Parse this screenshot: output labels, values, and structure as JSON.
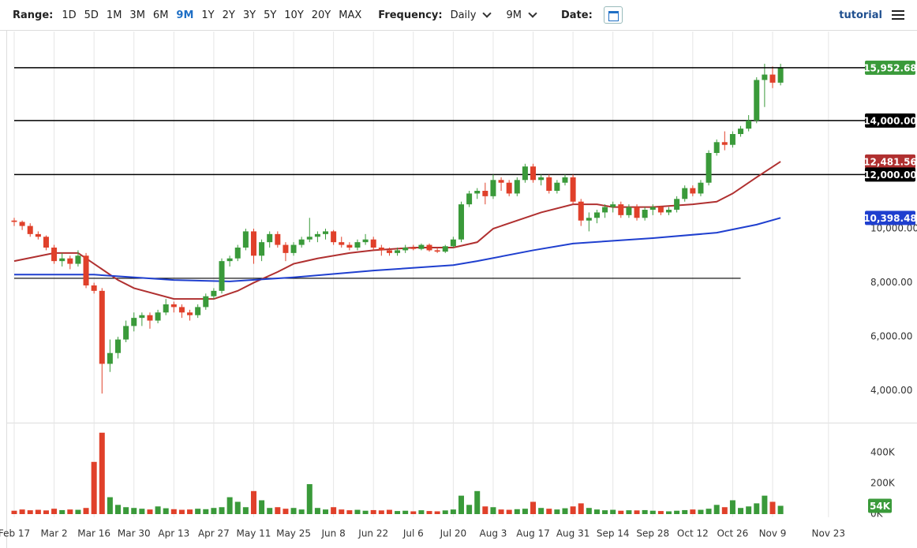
{
  "toolbar": {
    "range_label": "Range:",
    "ranges": [
      "1D",
      "5D",
      "1M",
      "3M",
      "6M",
      "9M",
      "1Y",
      "2Y",
      "3Y",
      "5Y",
      "10Y",
      "20Y",
      "MAX"
    ],
    "active_range": 5,
    "frequency_label": "Frequency:",
    "frequency": "Daily",
    "period": "9M",
    "date_label": "Date:",
    "tutorial": "tutorial"
  },
  "chart_data": {
    "type": "candlestick",
    "up_color": "#3a9a3a",
    "down_color": "#e0402a",
    "xlim": [
      -1,
      213
    ],
    "xticks": [
      {
        "value": 0,
        "label": "Feb 17"
      },
      {
        "value": 10,
        "label": "Mar 2"
      },
      {
        "value": 20,
        "label": "Mar 16"
      },
      {
        "value": 30,
        "label": "Mar 30"
      },
      {
        "value": 40,
        "label": "Apr 13"
      },
      {
        "value": 50,
        "label": "Apr 27"
      },
      {
        "value": 60,
        "label": "May 11"
      },
      {
        "value": 70,
        "label": "May 25"
      },
      {
        "value": 80,
        "label": "Jun 8"
      },
      {
        "value": 90,
        "label": "Jun 22"
      },
      {
        "value": 100,
        "label": "Jul 6"
      },
      {
        "value": 110,
        "label": "Jul 20"
      },
      {
        "value": 120,
        "label": "Aug 3"
      },
      {
        "value": 130,
        "label": "Aug 17"
      },
      {
        "value": 140,
        "label": "Aug 31"
      },
      {
        "value": 150,
        "label": "Sep 14"
      },
      {
        "value": 160,
        "label": "Sep 28"
      },
      {
        "value": 170,
        "label": "Oct 12"
      },
      {
        "value": 180,
        "label": "Oct 26"
      },
      {
        "value": 190,
        "label": "Nov 9"
      },
      {
        "value": 204,
        "label": "Nov 23"
      }
    ],
    "ylim": [
      3000,
      17000
    ],
    "yticks": [
      {
        "value": 4000,
        "label": "4,000.00"
      },
      {
        "value": 6000,
        "label": "6,000.00"
      },
      {
        "value": 8000,
        "label": "8,000.00"
      },
      {
        "value": 10000,
        "label": "10,000.00"
      }
    ],
    "x": [
      0,
      2,
      4,
      6,
      8,
      10,
      12,
      14,
      16,
      18,
      20,
      22,
      24,
      26,
      28,
      30,
      32,
      34,
      36,
      38,
      40,
      42,
      44,
      46,
      48,
      50,
      52,
      54,
      56,
      58,
      60,
      62,
      64,
      66,
      68,
      70,
      72,
      74,
      76,
      78,
      80,
      82,
      84,
      86,
      88,
      90,
      92,
      94,
      96,
      98,
      100,
      102,
      104,
      106,
      108,
      110,
      112,
      114,
      116,
      118,
      120,
      122,
      124,
      126,
      128,
      130,
      132,
      134,
      136,
      138,
      140,
      142,
      144,
      146,
      148,
      150,
      152,
      154,
      156,
      158,
      160,
      162,
      164,
      166,
      168,
      170,
      172,
      174,
      176,
      178,
      180,
      182,
      184,
      186,
      188,
      190,
      192
    ],
    "candles": [
      [
        10300,
        10400,
        10100,
        10250
      ],
      [
        10250,
        10300,
        9950,
        10100
      ],
      [
        10100,
        10200,
        9700,
        9800
      ],
      [
        9800,
        9900,
        9600,
        9700
      ],
      [
        9700,
        9750,
        9200,
        9300
      ],
      [
        9300,
        9400,
        8700,
        8800
      ],
      [
        8800,
        9100,
        8600,
        8900
      ],
      [
        8900,
        9000,
        8500,
        8700
      ],
      [
        8700,
        9200,
        8600,
        9000
      ],
      [
        9000,
        9100,
        7800,
        7900
      ],
      [
        7900,
        8000,
        7600,
        7700
      ],
      [
        7700,
        7800,
        3900,
        5000
      ],
      [
        5000,
        5900,
        4700,
        5400
      ],
      [
        5400,
        6000,
        5200,
        5900
      ],
      [
        5900,
        6600,
        5800,
        6400
      ],
      [
        6400,
        6900,
        6200,
        6700
      ],
      [
        6700,
        6900,
        6400,
        6800
      ],
      [
        6800,
        6900,
        6300,
        6600
      ],
      [
        6600,
        7000,
        6500,
        6900
      ],
      [
        6900,
        7400,
        6800,
        7200
      ],
      [
        7200,
        7300,
        6900,
        7100
      ],
      [
        7100,
        7200,
        6700,
        6900
      ],
      [
        6900,
        7000,
        6600,
        6800
      ],
      [
        6800,
        7200,
        6700,
        7100
      ],
      [
        7100,
        7600,
        7000,
        7500
      ],
      [
        7500,
        7800,
        7400,
        7700
      ],
      [
        7700,
        8900,
        7600,
        8800
      ],
      [
        8800,
        9000,
        8600,
        8900
      ],
      [
        8900,
        9400,
        8800,
        9300
      ],
      [
        9300,
        10000,
        9200,
        9900
      ],
      [
        9900,
        10000,
        8700,
        9000
      ],
      [
        9000,
        9600,
        8800,
        9500
      ],
      [
        9500,
        9900,
        9300,
        9800
      ],
      [
        9800,
        9900,
        9300,
        9400
      ],
      [
        9400,
        9500,
        8800,
        9100
      ],
      [
        9100,
        9500,
        9000,
        9400
      ],
      [
        9400,
        9700,
        9300,
        9600
      ],
      [
        9600,
        10400,
        9500,
        9700
      ],
      [
        9700,
        9900,
        9500,
        9800
      ],
      [
        9800,
        10000,
        9600,
        9900
      ],
      [
        9900,
        9950,
        9400,
        9500
      ],
      [
        9500,
        9700,
        9300,
        9400
      ],
      [
        9400,
        9500,
        9200,
        9300
      ],
      [
        9300,
        9600,
        9200,
        9500
      ],
      [
        9500,
        9800,
        9400,
        9600
      ],
      [
        9600,
        9700,
        9200,
        9300
      ],
      [
        9300,
        9400,
        9000,
        9200
      ],
      [
        9200,
        9300,
        9000,
        9100
      ],
      [
        9100,
        9300,
        9000,
        9200
      ],
      [
        9200,
        9400,
        9100,
        9300
      ],
      [
        9300,
        9400,
        9200,
        9250
      ],
      [
        9250,
        9450,
        9200,
        9400
      ],
      [
        9400,
        9450,
        9150,
        9200
      ],
      [
        9200,
        9300,
        9100,
        9150
      ],
      [
        9150,
        9400,
        9100,
        9350
      ],
      [
        9350,
        9700,
        9300,
        9600
      ],
      [
        9600,
        11000,
        9500,
        10900
      ],
      [
        10900,
        11400,
        10800,
        11300
      ],
      [
        11300,
        11500,
        11100,
        11400
      ],
      [
        11400,
        11700,
        10900,
        11200
      ],
      [
        11200,
        12000,
        11100,
        11800
      ],
      [
        11800,
        11900,
        11400,
        11700
      ],
      [
        11700,
        11800,
        11200,
        11300
      ],
      [
        11300,
        11900,
        11200,
        11800
      ],
      [
        11800,
        12400,
        11700,
        12300
      ],
      [
        12300,
        12400,
        11700,
        11800
      ],
      [
        11800,
        12000,
        11600,
        11900
      ],
      [
        11900,
        12000,
        11300,
        11400
      ],
      [
        11400,
        11800,
        11300,
        11700
      ],
      [
        11700,
        12000,
        11600,
        11900
      ],
      [
        11900,
        12000,
        10900,
        11000
      ],
      [
        11000,
        11100,
        10100,
        10300
      ],
      [
        10300,
        10600,
        9900,
        10400
      ],
      [
        10400,
        10700,
        10200,
        10600
      ],
      [
        10600,
        10900,
        10400,
        10800
      ],
      [
        10800,
        11000,
        10600,
        10900
      ],
      [
        10900,
        11000,
        10400,
        10500
      ],
      [
        10500,
        10900,
        10400,
        10800
      ],
      [
        10800,
        10900,
        10300,
        10400
      ],
      [
        10400,
        10800,
        10300,
        10700
      ],
      [
        10700,
        10900,
        10500,
        10800
      ],
      [
        10800,
        10850,
        10500,
        10600
      ],
      [
        10600,
        10800,
        10500,
        10700
      ],
      [
        10700,
        11200,
        10600,
        11100
      ],
      [
        11100,
        11600,
        11000,
        11500
      ],
      [
        11500,
        11600,
        11200,
        11300
      ],
      [
        11300,
        11800,
        11200,
        11700
      ],
      [
        11700,
        12900,
        11600,
        12800
      ],
      [
        12800,
        13300,
        12700,
        13200
      ],
      [
        13200,
        13600,
        12900,
        13100
      ],
      [
        13100,
        13600,
        13000,
        13500
      ],
      [
        13500,
        13800,
        13400,
        13700
      ],
      [
        13700,
        14200,
        13600,
        14000
      ],
      [
        14000,
        15600,
        13900,
        15500
      ],
      [
        15500,
        16100,
        14500,
        15700
      ],
      [
        15700,
        16000,
        15200,
        15400
      ],
      [
        15400,
        16100,
        15300,
        15952.68
      ]
    ],
    "last_label": "15,952.68",
    "volume": [
      22000,
      30000,
      25000,
      28000,
      24000,
      35000,
      26000,
      30000,
      28000,
      40000,
      340000,
      530000,
      110000,
      60000,
      45000,
      40000,
      35000,
      30000,
      50000,
      38000,
      32000,
      28000,
      30000,
      35000,
      32000,
      40000,
      45000,
      110000,
      80000,
      45000,
      150000,
      90000,
      40000,
      45000,
      35000,
      40000,
      30000,
      195000,
      40000,
      30000,
      45000,
      30000,
      25000,
      28000,
      22000,
      26000,
      24000,
      28000,
      20000,
      22000,
      18000,
      25000,
      20000,
      18000,
      24000,
      30000,
      120000,
      60000,
      150000,
      50000,
      45000,
      30000,
      28000,
      32000,
      35000,
      80000,
      40000,
      35000,
      30000,
      38000,
      50000,
      70000,
      40000,
      30000,
      25000,
      28000,
      22000,
      25000,
      24000,
      26000,
      22000,
      20000,
      18000,
      22000,
      26000,
      30000,
      28000,
      35000,
      60000,
      45000,
      90000,
      40000,
      50000,
      70000,
      120000,
      80000,
      54000
    ],
    "volume_ylim": [
      0,
      575000
    ],
    "volume_yticks": [
      {
        "value": 0,
        "label": "0K"
      },
      {
        "value": 200000,
        "label": "200K"
      },
      {
        "value": 400000,
        "label": "400K"
      }
    ],
    "volume_last_label": "54K",
    "levels": [
      {
        "value": 14000,
        "label": "14,000.00"
      },
      {
        "value": 12000,
        "label": "12,000.00"
      }
    ],
    "support_line": {
      "value": 8165,
      "x": [
        0,
        182
      ]
    },
    "moving_averages": [
      {
        "color": "#b03030",
        "x": [
          0,
          10,
          16,
          20,
          26,
          30,
          40,
          50,
          56,
          60,
          66,
          70,
          76,
          84,
          90,
          100,
          110,
          116,
          120,
          126,
          132,
          140,
          146,
          150,
          160,
          170,
          176,
          180,
          186,
          192
        ],
        "values": [
          8800,
          9100,
          9100,
          8700,
          8100,
          7800,
          7400,
          7400,
          7700,
          8000,
          8400,
          8700,
          8900,
          9100,
          9200,
          9300,
          9300,
          9500,
          10000,
          10300,
          10600,
          10900,
          10900,
          10800,
          10800,
          10900,
          11000,
          11300,
          11900,
          12481.56
        ],
        "last_label": "12,481.56"
      },
      {
        "color": "#1f3fcf",
        "x": [
          0,
          20,
          40,
          54,
          70,
          90,
          110,
          116,
          130,
          140,
          160,
          176,
          186,
          192
        ],
        "values": [
          8300,
          8300,
          8100,
          8050,
          8200,
          8450,
          8650,
          8800,
          9200,
          9450,
          9650,
          9850,
          10150,
          10398.48
        ],
        "last_label": "10,398.48"
      }
    ]
  }
}
